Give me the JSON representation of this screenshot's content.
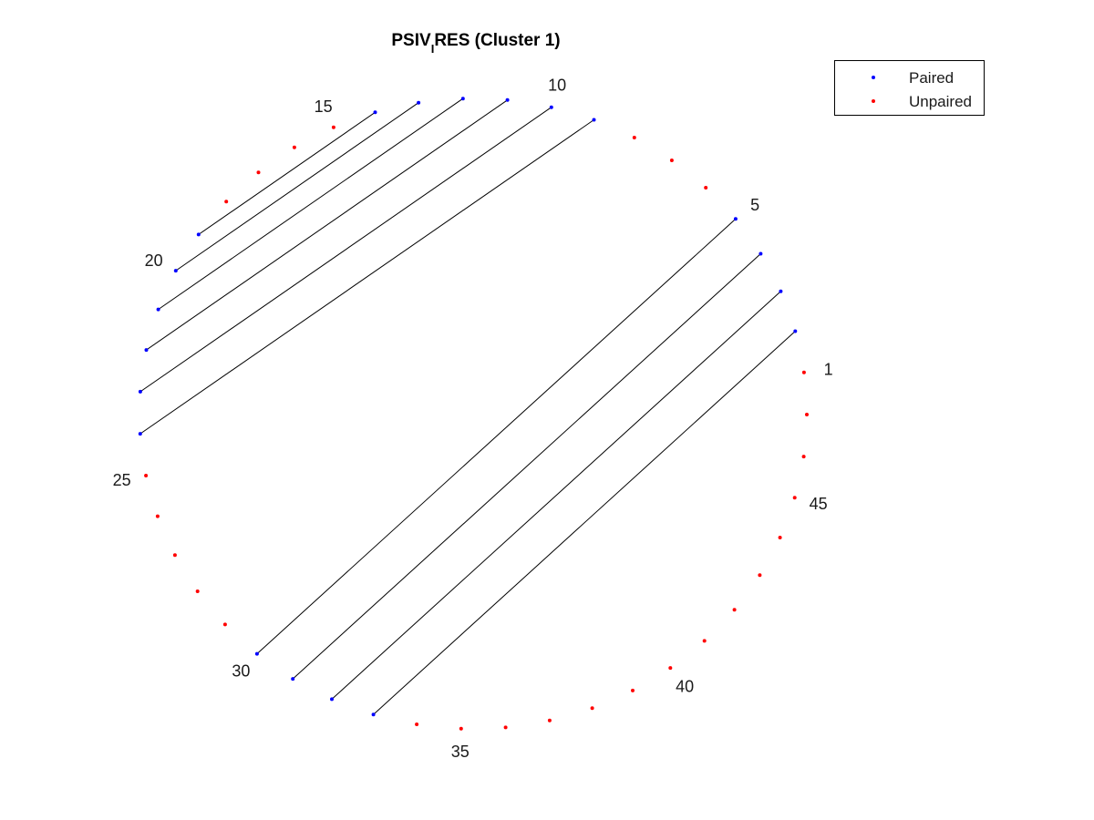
{
  "chart_data": {
    "type": "arc-diagram",
    "title": {
      "main": "PSIV",
      "subscript": "I",
      "rest": "RES (Cluster 1)"
    },
    "n_positions": 47,
    "pairs": [
      [
        2,
        33
      ],
      [
        3,
        32
      ],
      [
        4,
        31
      ],
      [
        5,
        30
      ],
      [
        9,
        24
      ],
      [
        10,
        23
      ],
      [
        11,
        22
      ],
      [
        12,
        21
      ],
      [
        13,
        20
      ],
      [
        14,
        19
      ]
    ],
    "position_labels": [
      1,
      5,
      10,
      15,
      20,
      25,
      30,
      35,
      40,
      45
    ],
    "legend": {
      "placement": "top-right",
      "entries": [
        {
          "label": "Paired",
          "color": "#0000ff"
        },
        {
          "label": "Unpaired",
          "color": "#ff0000"
        }
      ]
    },
    "colors": {
      "paired": "#0000ff",
      "unpaired": "#ff0000",
      "pair_line": "#000000"
    }
  }
}
